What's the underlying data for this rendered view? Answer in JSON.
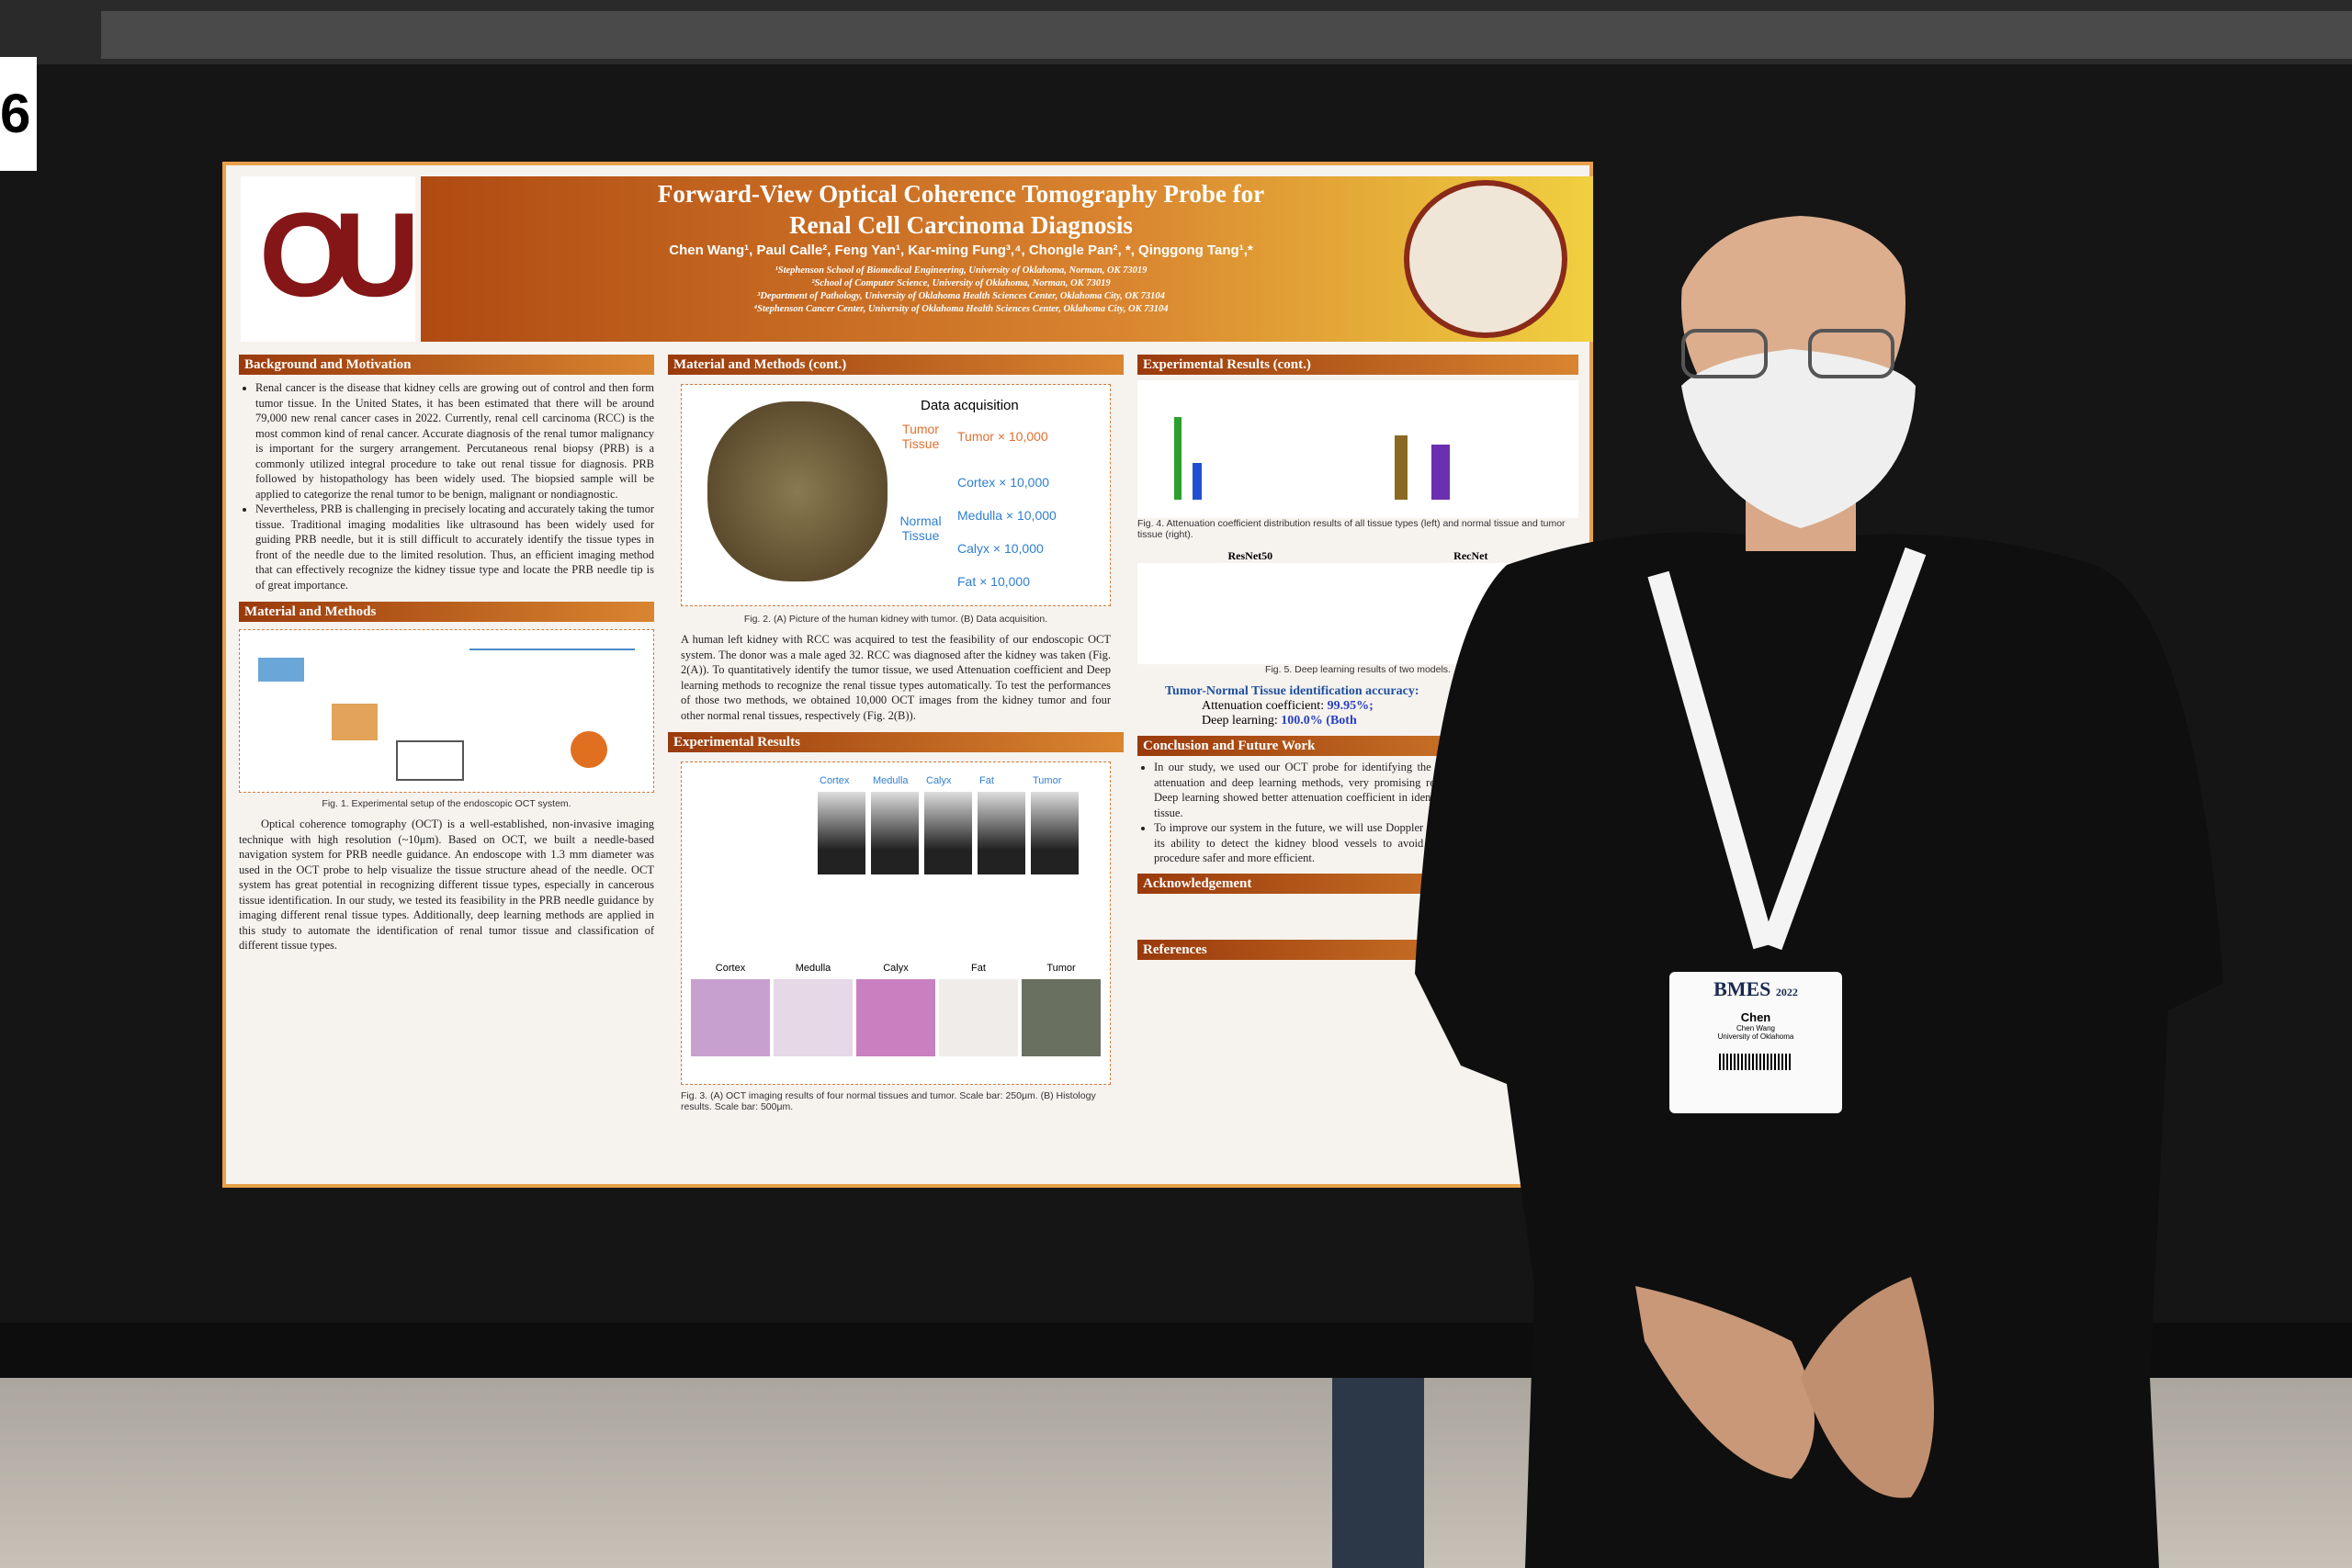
{
  "sign_number": "6",
  "poster": {
    "title": [
      "Forward-View Optical Coherence Tomography Probe for",
      "Renal Cell Carcinoma Diagnosis"
    ],
    "authors": "Chen Wang¹, Paul Calle², Feng Yan¹, Kar-ming Fung³,⁴, Chongle Pan², *, Qinggong Tang¹,*",
    "affiliations": [
      "¹Stephenson School of Biomedical Engineering, University of Oklahoma, Norman, OK 73019",
      "²School of Computer Science, University of Oklahoma, Norman, OK 73019",
      "³Department of Pathology, University of Oklahoma Health Sciences Center, Oklahoma City, OK 73104",
      "⁴Stephenson Cancer Center, University of Oklahoma Health Sciences Center, Oklahoma City, OK 73104"
    ],
    "background": {
      "heading": "Background and Motivation",
      "bullets": [
        "Renal cancer is the disease that kidney cells are growing out of control and then form tumor tissue. In the United States, it has been estimated that there will be around 79,000 new renal cancer cases in 2022. Currently, renal cell carcinoma (RCC) is the most common kind of renal cancer. Accurate diagnosis of the renal tumor malignancy is important for the surgery arrangement. Percutaneous renal biopsy (PRB) is a commonly utilized integral procedure to take out renal tissue for diagnosis. PRB followed by histopathology has been widely used. The biopsied sample will be applied to categorize the renal tumor to be benign, malignant or nondiagnostic.",
        "Nevertheless, PRB is challenging in precisely locating and accurately taking the tumor tissue. Traditional imaging modalities like ultrasound has been widely used for guiding PRB needle, but it is still difficult to accurately identify the tissue types in front of the needle due to the limited resolution. Thus, an efficient imaging method that can effectively recognize the kidney tissue type and locate the PRB needle tip is of great importance."
      ]
    },
    "methods": {
      "heading": "Material and Methods",
      "caption": "Fig. 1. Experimental setup of the endoscopic OCT system.",
      "paragraph": "Optical coherence tomography (OCT) is a well-established, non-invasive imaging technique with high resolution (~10μm). Based on OCT, we built a needle-based navigation system for PRB needle guidance. An endoscope with 1.3 mm diameter was used in the OCT probe to help visualize the tissue structure ahead of the needle. OCT system has great potential in recognizing different tissue types, especially in cancerous tissue identification. In our study, we tested its feasibility in the PRB needle guidance by imaging different renal tissue types. Additionally, deep learning methods are applied in this study to automate the identification of renal tumor tissue and classification of different tissue types."
    },
    "methods_cont": {
      "heading": "Material and Methods (cont.)",
      "panel": "Data acquisition",
      "tumor_group": "Tumor Tissue",
      "normal_group": "Normal Tissue",
      "counts": [
        "Tumor × 10,000",
        "Cortex × 10,000",
        "Medulla × 10,000",
        "Calyx × 10,000",
        "Fat × 10,000"
      ],
      "caption": "Fig. 2. (A) Picture of the human kidney with tumor. (B) Data acquisition.",
      "paragraph": "A human left kidney with RCC was acquired to test the feasibility of our endoscopic OCT system. The donor was a male aged 32. RCC was diagnosed after the kidney was taken (Fig. 2(A)). To quantitatively identify the tumor tissue, we used Attenuation coefficient and Deep learning methods to recognize the renal tissue types automatically. To test the performances of those two methods, we obtained 10,000 OCT images from the kidney tumor and four other normal renal tissues, respectively (Fig. 2(B))."
    },
    "results": {
      "heading": "Experimental Results",
      "tissues": [
        "Cortex",
        "Medulla",
        "Calyx",
        "Fat",
        "Tumor"
      ],
      "caption": "Fig. 3. (A) OCT imaging results of four normal tissues and tumor. Scale bar: 250μm. (B) Histology results. Scale bar: 500μm."
    },
    "results_cont": {
      "heading": "Experimental Results (cont.)",
      "caption4": "Fig. 4. Attenuation coefficient distribution results of all tissue types (left) and normal tissue and tumor tissue (right).",
      "models": [
        "ResNet50",
        "RecNet"
      ],
      "caption5": "Fig. 5. Deep learning results of two models.",
      "accuracy_title": "Tumor-Normal Tissue identification accuracy:",
      "accuracy": [
        "Attenuation coefficient:",
        "99.95%;",
        "Deep learning:",
        "100.0% (Both"
      ]
    },
    "conclusion": {
      "heading": "Conclusion and Future Work",
      "bullets": [
        "In our study, we used our OCT probe for identifying the kidney tissue types. By using attenuation and deep learning methods, very promising results of tumor were obtained. Deep learning showed better attenuation coefficient in identifying all tissue types of tumor tissue.",
        "To improve our system in the future, we will use Doppler function of OCT machine to test its ability to detect the kidney blood vessels to avoid the injury and make the PRB procedure safer and more efficient."
      ]
    },
    "acknowledgement": {
      "heading": "Acknowledgement"
    },
    "references": {
      "heading": "References"
    }
  },
  "badge": {
    "org": "BMES",
    "year": "2022",
    "first_name": "Chen",
    "full_name": "Chen Wang",
    "school": "University of Oklahoma"
  }
}
